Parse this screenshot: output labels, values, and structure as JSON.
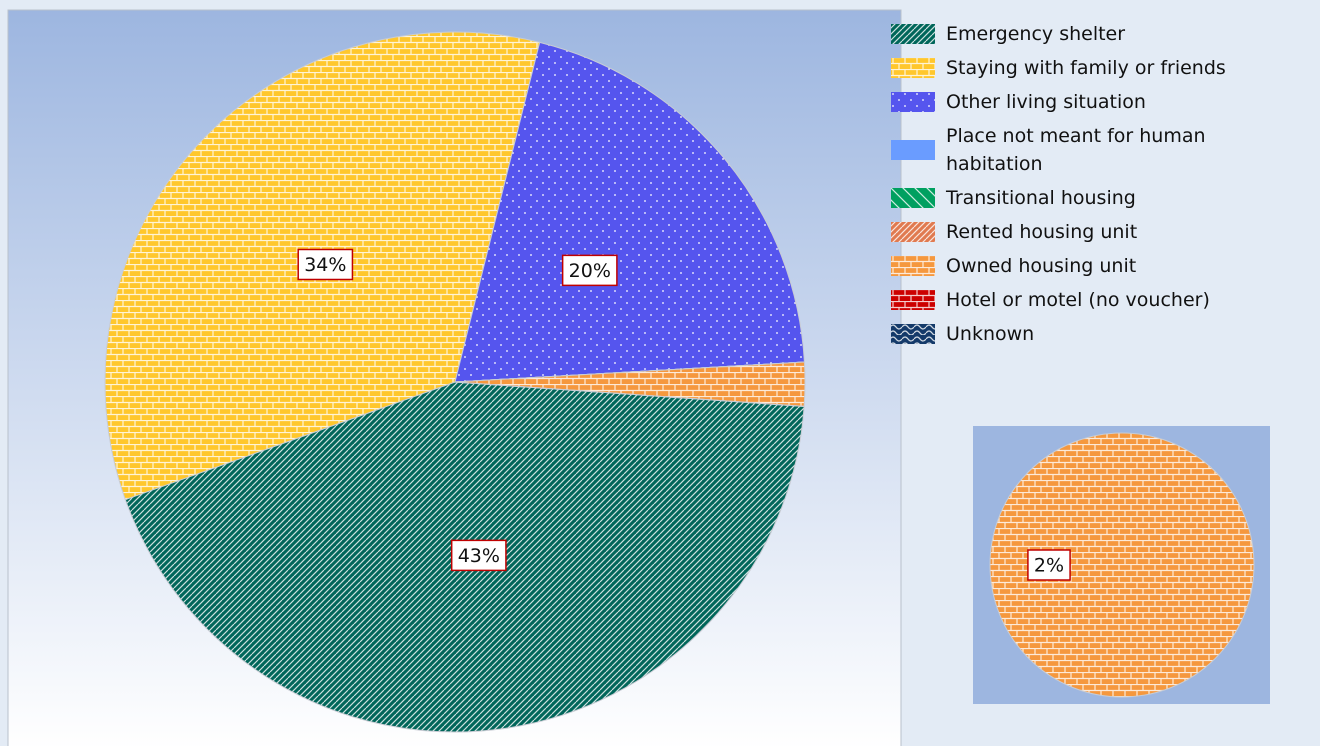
{
  "chart_data": {
    "type": "pie",
    "categories": [
      "Emergency shelter",
      "Staying with family or friends",
      "Other living situation",
      "Place not meant for human habitation",
      "Transitional housing",
      "Rented housing unit",
      "Owned housing unit",
      "Hotel or motel (no voucher)",
      "Unknown"
    ],
    "values": [
      43,
      34,
      20,
      0,
      0,
      0,
      2,
      0,
      0
    ],
    "value_labels": [
      "43%",
      "34%",
      "20%",
      null,
      null,
      null,
      "2%",
      null,
      null
    ],
    "colors": [
      "#00665a",
      "#ffc72c",
      "#5555ee",
      "#6a9cff",
      "#00a060",
      "#e07a50",
      "#f5983e",
      "#cc0000",
      "#143a6a"
    ],
    "legend": "right"
  }
}
